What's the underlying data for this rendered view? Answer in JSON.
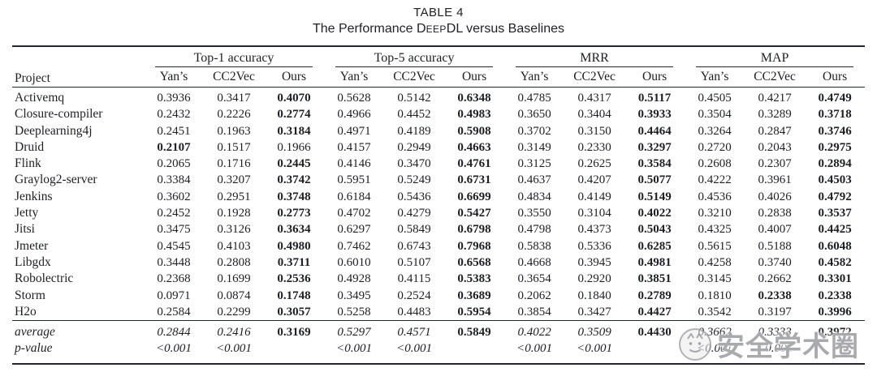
{
  "caption": {
    "table_label": "TABLE 4",
    "title_pre": "The Performance D",
    "title_smallcaps": "EEP",
    "title_post": "DL versus Baselines"
  },
  "table": {
    "project_header": "Project",
    "groups": [
      "Top-1 accuracy",
      "Top-5 accuracy",
      "MRR",
      "MAP"
    ],
    "sub_headers": [
      "Yan’s",
      "CC2Vec",
      "Ours"
    ],
    "rows": [
      {
        "project": "Activemq",
        "values": [
          "0.3936",
          "0.3417",
          "0.4070",
          "0.5628",
          "0.5142",
          "0.6348",
          "0.4785",
          "0.4317",
          "0.5117",
          "0.4505",
          "0.4217",
          "0.4749"
        ],
        "bold": [
          2,
          5,
          8,
          11
        ]
      },
      {
        "project": "Closure-compiler",
        "values": [
          "0.2432",
          "0.2226",
          "0.2774",
          "0.4966",
          "0.4452",
          "0.4983",
          "0.3650",
          "0.3404",
          "0.3933",
          "0.3504",
          "0.3289",
          "0.3718"
        ],
        "bold": [
          2,
          5,
          8,
          11
        ]
      },
      {
        "project": "Deeplearning4j",
        "values": [
          "0.2451",
          "0.1963",
          "0.3184",
          "0.4971",
          "0.4189",
          "0.5908",
          "0.3702",
          "0.3150",
          "0.4464",
          "0.3264",
          "0.2847",
          "0.3746"
        ],
        "bold": [
          2,
          5,
          8,
          11
        ]
      },
      {
        "project": "Druid",
        "values": [
          "0.2107",
          "0.1517",
          "0.1966",
          "0.4157",
          "0.2949",
          "0.4663",
          "0.3149",
          "0.2330",
          "0.3297",
          "0.2720",
          "0.2043",
          "0.2975"
        ],
        "bold": [
          0,
          5,
          8,
          11
        ]
      },
      {
        "project": "Flink",
        "values": [
          "0.2065",
          "0.1716",
          "0.2445",
          "0.4146",
          "0.3470",
          "0.4761",
          "0.3125",
          "0.2625",
          "0.3584",
          "0.2608",
          "0.2307",
          "0.2894"
        ],
        "bold": [
          2,
          5,
          8,
          11
        ]
      },
      {
        "project": "Graylog2-server",
        "values": [
          "0.3384",
          "0.3207",
          "0.3742",
          "0.5951",
          "0.5249",
          "0.6731",
          "0.4637",
          "0.4207",
          "0.5077",
          "0.4222",
          "0.3961",
          "0.4503"
        ],
        "bold": [
          2,
          5,
          8,
          11
        ]
      },
      {
        "project": "Jenkins",
        "values": [
          "0.3602",
          "0.2951",
          "0.3748",
          "0.6184",
          "0.5436",
          "0.6699",
          "0.4834",
          "0.4149",
          "0.5149",
          "0.4536",
          "0.4026",
          "0.4792"
        ],
        "bold": [
          2,
          5,
          8,
          11
        ]
      },
      {
        "project": "Jetty",
        "values": [
          "0.2452",
          "0.1928",
          "0.2773",
          "0.4702",
          "0.4279",
          "0.5427",
          "0.3550",
          "0.3104",
          "0.4022",
          "0.3210",
          "0.2838",
          "0.3537"
        ],
        "bold": [
          2,
          5,
          8,
          11
        ]
      },
      {
        "project": "Jitsi",
        "values": [
          "0.3475",
          "0.3126",
          "0.3634",
          "0.6297",
          "0.5849",
          "0.6798",
          "0.4798",
          "0.4373",
          "0.5043",
          "0.4325",
          "0.4007",
          "0.4425"
        ],
        "bold": [
          2,
          5,
          8,
          11
        ]
      },
      {
        "project": "Jmeter",
        "values": [
          "0.4545",
          "0.4103",
          "0.4980",
          "0.7462",
          "0.6743",
          "0.7968",
          "0.5838",
          "0.5336",
          "0.6285",
          "0.5615",
          "0.5188",
          "0.6048"
        ],
        "bold": [
          2,
          5,
          8,
          11
        ]
      },
      {
        "project": "Libgdx",
        "values": [
          "0.3448",
          "0.2808",
          "0.3711",
          "0.6010",
          "0.5107",
          "0.6568",
          "0.4668",
          "0.3945",
          "0.4981",
          "0.4258",
          "0.3740",
          "0.4582"
        ],
        "bold": [
          2,
          5,
          8,
          11
        ]
      },
      {
        "project": "Robolectric",
        "values": [
          "0.2368",
          "0.1699",
          "0.2536",
          "0.4928",
          "0.4115",
          "0.5383",
          "0.3654",
          "0.2920",
          "0.3851",
          "0.3145",
          "0.2662",
          "0.3301"
        ],
        "bold": [
          2,
          5,
          8,
          11
        ]
      },
      {
        "project": "Storm",
        "values": [
          "0.0971",
          "0.0874",
          "0.1748",
          "0.3495",
          "0.2524",
          "0.3689",
          "0.2062",
          "0.1840",
          "0.2789",
          "0.1810",
          "0.2338",
          "0.2338"
        ],
        "bold": [
          2,
          5,
          8,
          10,
          11
        ]
      },
      {
        "project": "H2o",
        "values": [
          "0.2584",
          "0.2299",
          "0.3057",
          "0.5258",
          "0.4483",
          "0.5954",
          "0.3854",
          "0.3427",
          "0.4427",
          "0.3542",
          "0.3197",
          "0.3996"
        ],
        "bold": [
          2,
          5,
          8,
          11
        ]
      }
    ],
    "summary": [
      {
        "label": "average",
        "values": [
          "0.2844",
          "0.2416",
          "0.3169",
          "0.5297",
          "0.4571",
          "0.5849",
          "0.4022",
          "0.3509",
          "0.4430",
          "0.3662",
          "0.3333",
          "0.3972"
        ],
        "bold": [
          2,
          5,
          8,
          11
        ]
      },
      {
        "label": "p-value",
        "values": [
          "<0.001",
          "<0.001",
          "",
          "<0.001",
          "<0.001",
          "",
          "<0.001",
          "<0.001",
          "",
          "<0.001",
          "<0.001",
          ""
        ],
        "bold": []
      }
    ]
  },
  "watermark": {
    "text": "安全学术圈",
    "color": "#949598"
  },
  "colors": {
    "text": "#1d1f24",
    "rule": "#23262d",
    "background": "#ffffff",
    "watermark": "#949598"
  }
}
